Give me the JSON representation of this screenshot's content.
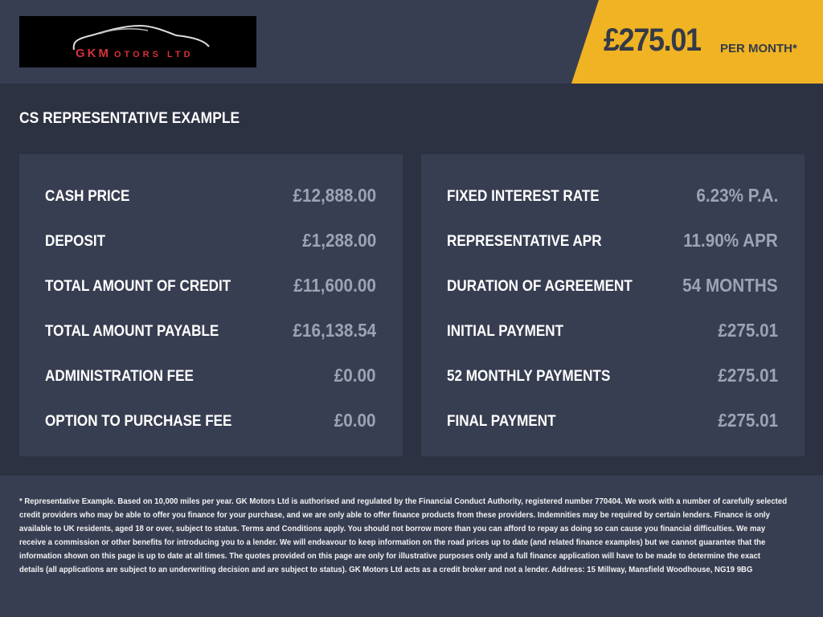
{
  "logo": {
    "text": "GK MOTORS LTD"
  },
  "header": {
    "price": "£275.01",
    "per_month": "PER MONTH*",
    "accent": "#f0b323"
  },
  "title": "CS REPRESENTATIVE EXAMPLE",
  "left": [
    {
      "label": "CASH PRICE",
      "value": "£12,888.00"
    },
    {
      "label": "DEPOSIT",
      "value": "£1,288.00"
    },
    {
      "label": "TOTAL AMOUNT OF CREDIT",
      "value": "£11,600.00"
    },
    {
      "label": "TOTAL AMOUNT PAYABLE",
      "value": "£16,138.54"
    },
    {
      "label": "ADMINISTRATION FEE",
      "value": "£0.00"
    },
    {
      "label": "OPTION TO PURCHASE FEE",
      "value": "£0.00"
    }
  ],
  "right": [
    {
      "label": "FIXED INTEREST RATE",
      "value": "6.23% P.A."
    },
    {
      "label": "REPRESENTATIVE APR",
      "value": "11.90% APR"
    },
    {
      "label": "DURATION OF AGREEMENT",
      "value": "54 MONTHS"
    },
    {
      "label": "INITIAL PAYMENT",
      "value": "£275.01"
    },
    {
      "label": "52 MONTHLY PAYMENTS",
      "value": "£275.01"
    },
    {
      "label": "FINAL PAYMENT",
      "value": "£275.01"
    }
  ],
  "footer": [
    "* Representative Example. Based on 10,000 miles per year. GK Motors Ltd is authorised and regulated by the Financial Conduct Authority, registered number 770404. We work with a number of carefully selected",
    "credit providers who may be able to offer you finance for your purchase, and we are only able to offer finance products from these providers. Indemnities may be required by certain lenders. Finance is only",
    "available to UK residents, aged 18 or over, subject to status. Terms and Conditions apply. You should not borrow more than you can afford to repay as doing so can cause you financial difficulties. We may",
    "receive a commission or other benefits for introducing you to a lender. We will endeavour to keep information on the road prices up to date (and related finance examples) but we cannot guarantee that the",
    "information shown on this page is up to date at all times. The quotes provided on this page are only for illustrative purposes only and a full finance application will have to be made to determine the exact",
    "details (all applications are subject to an underwriting decision and are subject to status). GK Motors Ltd acts as a credit broker and not a lender. Address: 15 Millway, Mansfield Woodhouse, NG19 9BG"
  ]
}
